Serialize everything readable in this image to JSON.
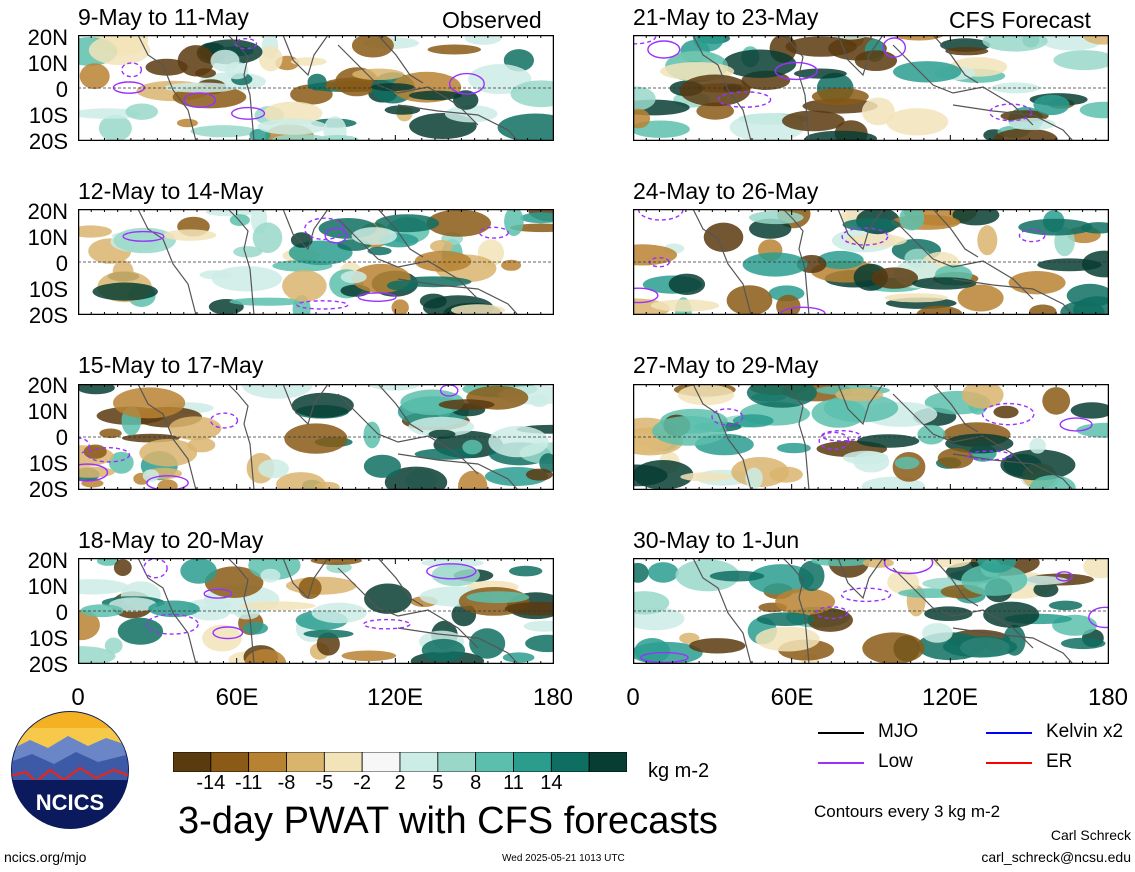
{
  "panels_left": [
    {
      "title": "9-May to 11-May",
      "corner": "Observed"
    },
    {
      "title": "12-May to 14-May",
      "corner": ""
    },
    {
      "title": "15-May to 17-May",
      "corner": ""
    },
    {
      "title": "18-May to 20-May",
      "corner": ""
    }
  ],
  "panels_right": [
    {
      "title": "21-May to 23-May",
      "corner": "CFS Forecast"
    },
    {
      "title": "24-May to 26-May",
      "corner": ""
    },
    {
      "title": "27-May to 29-May",
      "corner": ""
    },
    {
      "title": "30-May to 1-Jun",
      "corner": ""
    }
  ],
  "lat_labels": [
    "20N",
    "10N",
    "0",
    "10S",
    "20S"
  ],
  "lon_labels": [
    "0",
    "60E",
    "120E",
    "180"
  ],
  "colorbar": {
    "colors": [
      "#5a3a0f",
      "#8a5a16",
      "#b88233",
      "#d9b46d",
      "#f2e3b9",
      "#f7f7f7",
      "#ccece6",
      "#99d8c9",
      "#5cbfad",
      "#2a9d8f",
      "#0f6e62",
      "#083d33"
    ],
    "labels": [
      "-14",
      "-11",
      "-8",
      "-5",
      "-2",
      "2",
      "5",
      "8",
      "11",
      "14"
    ],
    "units": "kg m-2"
  },
  "main_title": "3-day PWAT with CFS forecasts",
  "legend": [
    {
      "label": "MJO",
      "color": "#000000"
    },
    {
      "label": "Kelvin x2",
      "color": "#0000ff"
    },
    {
      "label": "Low",
      "color": "#9b30ff"
    },
    {
      "label": "ER",
      "color": "#ff0000"
    }
  ],
  "contour_note": "Contours every 3 kg m-2",
  "author": "Carl Schreck",
  "email": "carl_schreck@ncsu.edu",
  "website": "ncics.org/mjo",
  "timestamp": "Wed 2025-05-21 1013 UTC",
  "logo_text": "NCICS"
}
